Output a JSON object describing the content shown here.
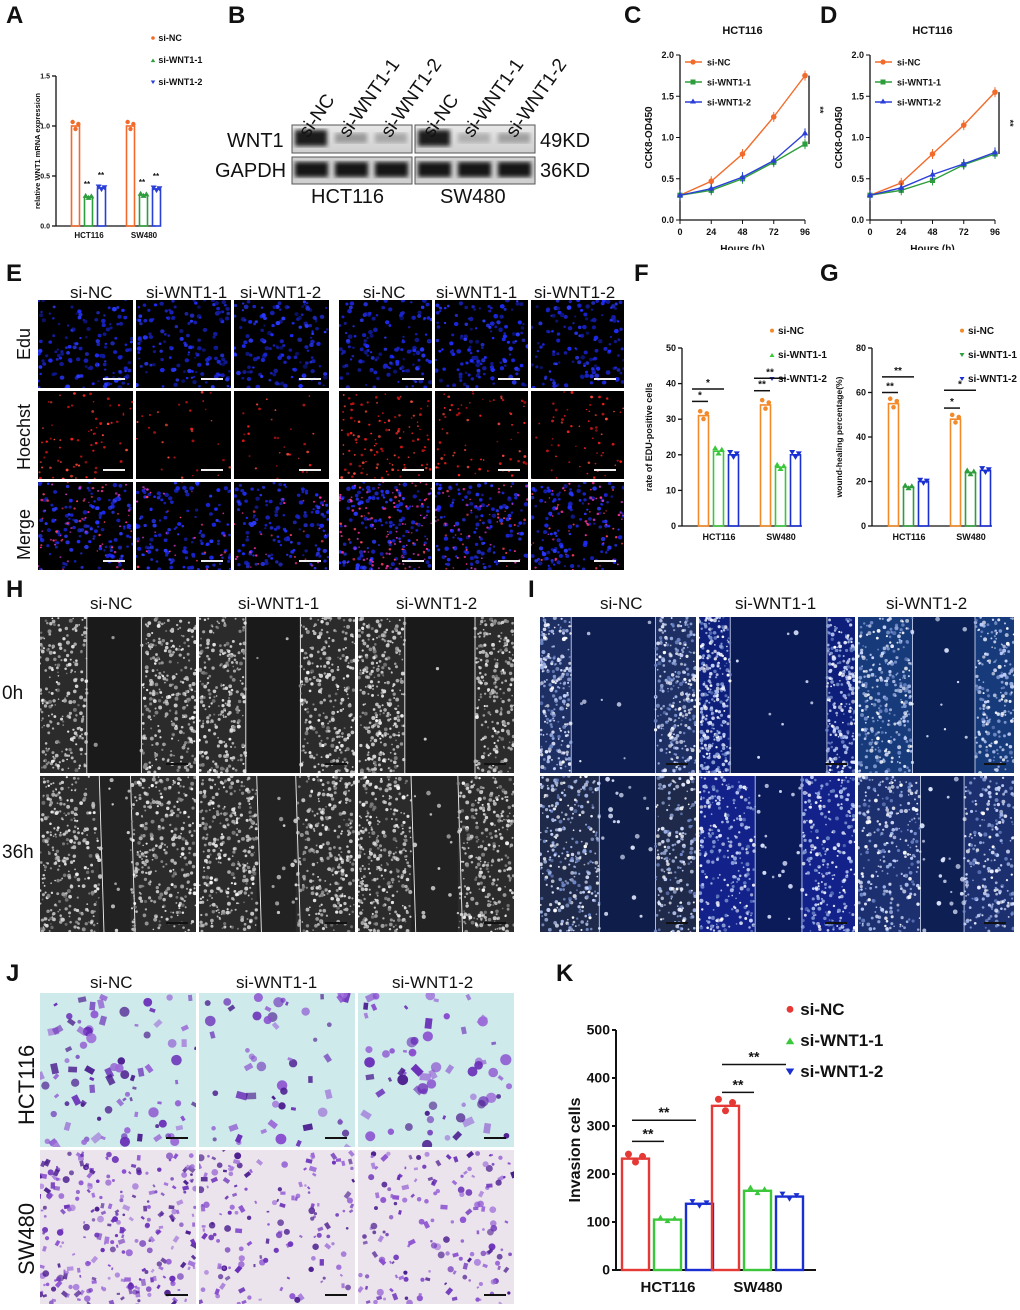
{
  "panels": {
    "A": "A",
    "B": "B",
    "C": "C",
    "D": "D",
    "E": "E",
    "F": "F",
    "G": "G",
    "H": "H",
    "I": "I",
    "J": "J",
    "K": "K"
  },
  "colors": {
    "siNC": "#f26b2a",
    "siW1": "#2e9e3c",
    "siW2": "#2a3fd8",
    "redNC": "#e53935",
    "greenW1": "#3ac73a",
    "blueW2": "#1a2fd1",
    "orangeNC": "#f28a2a"
  },
  "legend_labels": [
    "si-NC",
    "si-WNT1-1",
    "si-WNT1-2"
  ],
  "blot": {
    "lanes": [
      "si-NC",
      "si-WNT1-1",
      "si-WNT1-2",
      "si-NC",
      "si-WNT1-1",
      "si-WNT1-2"
    ],
    "rows": [
      "WNT1",
      "GAPDH"
    ],
    "sizes": [
      "49KD",
      "36KD"
    ],
    "cells": [
      "HCT116",
      "SW480"
    ]
  },
  "E": {
    "cols": [
      "si-NC",
      "si-WNT1-1",
      "si-WNT1-2",
      "si-NC",
      "si-WNT1-1",
      "si-WNT1-2"
    ],
    "rows": [
      "Edu",
      "Hoechst",
      "Merge"
    ]
  },
  "H": {
    "cols": [
      "si-NC",
      "si-WNT1-1",
      "si-WNT1-2"
    ],
    "rows": [
      "0h",
      "36h"
    ],
    "scale": "200 µm"
  },
  "I": {
    "cols": [
      "si-NC",
      "si-WNT1-1",
      "si-WNT1-2"
    ],
    "scale": "200 µm"
  },
  "J": {
    "cols": [
      "si-NC",
      "si-WNT1-1",
      "si-WNT1-2"
    ],
    "rows": [
      "HCT116",
      "SW480"
    ],
    "scale": "200 µm"
  },
  "chart_data": [
    {
      "panel": "A",
      "type": "bar",
      "ylabel": "relative WNT1 mRNA expression",
      "categories": [
        "HCT116",
        "SW480"
      ],
      "ylim": [
        0,
        1.5
      ],
      "yticks": [
        "0.0",
        "0.5",
        "1.0",
        "1.5"
      ],
      "series": [
        {
          "name": "si-NC",
          "values": [
            1.0,
            1.0
          ]
        },
        {
          "name": "si-WNT1-1",
          "values": [
            0.29,
            0.31
          ]
        },
        {
          "name": "si-WNT1-2",
          "values": [
            0.38,
            0.37
          ]
        }
      ],
      "annotations": [
        "**",
        "**",
        "**",
        "**"
      ]
    },
    {
      "panel": "C",
      "type": "line",
      "title": "HCT116",
      "xlabel": "Hours (h)",
      "ylabel": "CCK8-OD450",
      "x": [
        0,
        24,
        48,
        72,
        96
      ],
      "ylim": [
        0,
        2.0
      ],
      "yticks": [
        "0.0",
        "0.5",
        "1.0",
        "1.5",
        "2.0"
      ],
      "xticks": [
        "0",
        "24",
        "48",
        "72",
        "96"
      ],
      "series": [
        {
          "name": "si-NC",
          "values": [
            0.3,
            0.47,
            0.8,
            1.25,
            1.75
          ]
        },
        {
          "name": "si-WNT1-1",
          "values": [
            0.3,
            0.36,
            0.5,
            0.7,
            0.92
          ]
        },
        {
          "name": "si-WNT1-2",
          "values": [
            0.3,
            0.38,
            0.52,
            0.72,
            1.05
          ]
        }
      ],
      "annotations": [
        "**"
      ]
    },
    {
      "panel": "D",
      "type": "line",
      "title": "HCT116",
      "xlabel": "Hours (h)",
      "ylabel": "CCK8-OD450",
      "x": [
        0,
        24,
        48,
        72,
        96
      ],
      "ylim": [
        0,
        2.0
      ],
      "yticks": [
        "0.0",
        "0.5",
        "1.0",
        "1.5",
        "2.0"
      ],
      "xticks": [
        "0",
        "24",
        "48",
        "72",
        "96"
      ],
      "series": [
        {
          "name": "si-NC",
          "values": [
            0.3,
            0.45,
            0.8,
            1.15,
            1.55
          ]
        },
        {
          "name": "si-WNT1-1",
          "values": [
            0.3,
            0.36,
            0.48,
            0.67,
            0.8
          ]
        },
        {
          "name": "si-WNT1-2",
          "values": [
            0.3,
            0.39,
            0.55,
            0.68,
            0.82
          ]
        }
      ],
      "annotations": [
        "**"
      ]
    },
    {
      "panel": "F",
      "type": "bar",
      "ylabel": "rate of EDU-positive cells",
      "categories": [
        "HCT116",
        "SW480"
      ],
      "ylim": [
        0,
        50
      ],
      "yticks": [
        "0",
        "10",
        "20",
        "30",
        "40",
        "50"
      ],
      "series": [
        {
          "name": "si-NC",
          "values": [
            31,
            34
          ]
        },
        {
          "name": "si-WNT1-1",
          "values": [
            21,
            16.5
          ]
        },
        {
          "name": "si-WNT1-2",
          "values": [
            20,
            20
          ]
        }
      ],
      "annotations": [
        "*",
        "*",
        "**",
        "**"
      ]
    },
    {
      "panel": "G",
      "type": "bar",
      "ylabel": "wound-healing percentage(%)",
      "categories": [
        "HCT116",
        "SW480"
      ],
      "ylim": [
        0,
        80
      ],
      "yticks": [
        "0",
        "20",
        "40",
        "60",
        "80"
      ],
      "series": [
        {
          "name": "si-NC",
          "values": [
            55,
            48
          ]
        },
        {
          "name": "si-WNT1-1",
          "values": [
            17.5,
            24
          ]
        },
        {
          "name": "si-WNT1-2",
          "values": [
            20,
            25
          ]
        }
      ],
      "annotations": [
        "**",
        "**",
        "*",
        "*"
      ]
    },
    {
      "panel": "K",
      "type": "bar",
      "ylabel": "Invasion cells",
      "categories": [
        "HCT116",
        "SW480"
      ],
      "ylim": [
        0,
        500
      ],
      "yticks": [
        "0",
        "100",
        "200",
        "300",
        "400",
        "500"
      ],
      "series": [
        {
          "name": "si-NC",
          "values": [
            232,
            342
          ]
        },
        {
          "name": "si-WNT1-1",
          "values": [
            105,
            165
          ]
        },
        {
          "name": "si-WNT1-2",
          "values": [
            138,
            153
          ]
        }
      ],
      "annotations": [
        "**",
        "**",
        "**",
        "**"
      ]
    }
  ]
}
